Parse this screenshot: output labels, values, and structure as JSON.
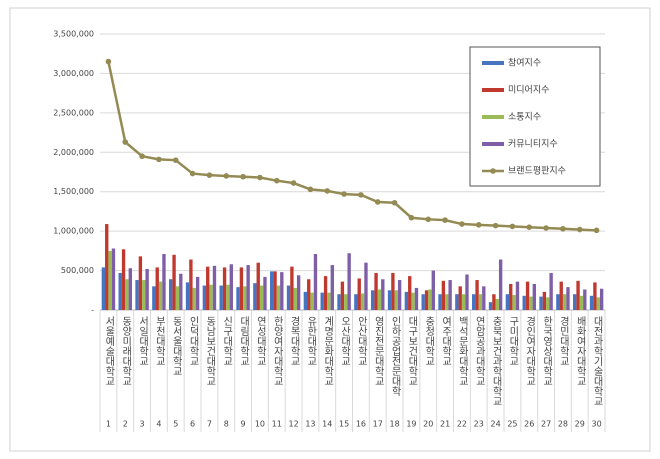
{
  "chart_data": {
    "type": "bar-line",
    "categories": [
      "서울예술대학교",
      "동양미래대학교",
      "서일대학교",
      "부천대학교",
      "동서울대학교",
      "인덕대학교",
      "동남보건대학교",
      "신구대학교",
      "대림대학교",
      "연성대학교",
      "한양여자대학교",
      "경복대학교",
      "유한대학교",
      "계명문화대학교",
      "오산대학교",
      "안산대학교",
      "영진전문대학교",
      "인하공업전문대학",
      "대구보건대학교",
      "충청대학교",
      "여주대학교",
      "백석문화대학교",
      "연암공과대학교",
      "충북보건과학대학교",
      "구미대학교",
      "경인여자대학교",
      "한국영상대학교",
      "경민대학교",
      "배화여자대학교",
      "대전과학기술대학교"
    ],
    "ranks": [
      1,
      2,
      3,
      4,
      5,
      6,
      7,
      8,
      9,
      10,
      11,
      12,
      13,
      14,
      15,
      16,
      17,
      18,
      19,
      20,
      21,
      22,
      23,
      24,
      25,
      26,
      27,
      28,
      29,
      30
    ],
    "series": [
      {
        "name": "참여지수",
        "color": "#4674c1",
        "values": [
          540000,
          470000,
          380000,
          300000,
          390000,
          350000,
          310000,
          310000,
          290000,
          340000,
          490000,
          310000,
          230000,
          220000,
          200000,
          200000,
          250000,
          250000,
          230000,
          200000,
          200000,
          200000,
          200000,
          100000,
          200000,
          180000,
          170000,
          200000,
          200000,
          180000
        ]
      },
      {
        "name": "미디어지수",
        "color": "#c0392f",
        "values": [
          1090000,
          770000,
          680000,
          540000,
          700000,
          640000,
          550000,
          540000,
          540000,
          600000,
          490000,
          550000,
          390000,
          430000,
          360000,
          400000,
          470000,
          470000,
          430000,
          250000,
          370000,
          300000,
          380000,
          200000,
          330000,
          360000,
          230000,
          360000,
          370000,
          350000
        ]
      },
      {
        "name": "소통지수",
        "color": "#9bbb59",
        "values": [
          750000,
          390000,
          380000,
          360000,
          300000,
          280000,
          320000,
          320000,
          300000,
          310000,
          310000,
          280000,
          220000,
          220000,
          200000,
          210000,
          260000,
          250000,
          220000,
          260000,
          200000,
          200000,
          200000,
          140000,
          190000,
          170000,
          160000,
          200000,
          180000,
          160000
        ]
      },
      {
        "name": "커뮤니티지수",
        "color": "#7e5fa7",
        "values": [
          780000,
          530000,
          520000,
          710000,
          460000,
          420000,
          560000,
          580000,
          570000,
          420000,
          480000,
          440000,
          710000,
          570000,
          720000,
          600000,
          390000,
          380000,
          280000,
          500000,
          380000,
          450000,
          300000,
          640000,
          360000,
          330000,
          470000,
          290000,
          260000,
          270000
        ]
      },
      {
        "name": "브랜드평판지수",
        "type": "line",
        "color": "#948a54",
        "values": [
          3150000,
          2130000,
          1950000,
          1910000,
          1900000,
          1730000,
          1710000,
          1700000,
          1690000,
          1680000,
          1640000,
          1610000,
          1530000,
          1510000,
          1470000,
          1460000,
          1370000,
          1360000,
          1170000,
          1150000,
          1140000,
          1090000,
          1080000,
          1070000,
          1060000,
          1050000,
          1040000,
          1030000,
          1020000,
          1010000
        ]
      }
    ],
    "ylim": [
      0,
      3500000
    ],
    "yticks": [
      {
        "value": 0,
        "label": "-"
      },
      {
        "value": 500000,
        "label": "500,000"
      },
      {
        "value": 1000000,
        "label": "1,000,000"
      },
      {
        "value": 1500000,
        "label": "1,500,000"
      },
      {
        "value": 2000000,
        "label": "2,000,000"
      },
      {
        "value": 2500000,
        "label": "2,500,000"
      },
      {
        "value": 3000000,
        "label": "3,000,000"
      },
      {
        "value": 3500000,
        "label": "3,500,000"
      }
    ],
    "grid": true,
    "legend": "upper right"
  }
}
